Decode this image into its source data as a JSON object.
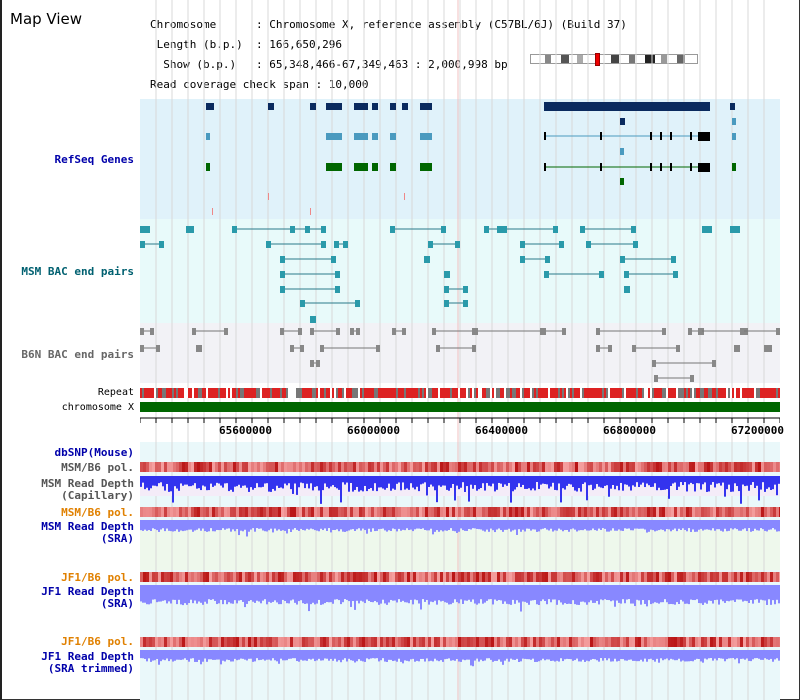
{
  "header": {
    "title": "Map View",
    "info_lines": [
      "Chromosome      : Chromosome X, reference assembly (C57BL/6J) (Build 37)",
      " Length (b.p.)  : 166,650,296",
      "  Show (b.p.)   : 65,348,466-67,349,463 : 2,000,998 bp",
      "Read coverage check span : 10,000"
    ]
  },
  "tracks": {
    "refseq": "RefSeq Genes",
    "msm_bac": "MSM BAC end pairs",
    "b6n_bac": "B6N BAC end pairs",
    "repeat": "Repeat",
    "chromosome": "chromosome X",
    "dbsnp": "dbSNP(Mouse)",
    "msm_b6_pol_1": "MSM/B6 pol.",
    "msm_depth_cap": "MSM Read Depth\n(Capillary)",
    "msm_b6_pol_2": "MSM/B6 pol.",
    "msm_depth_sra": "MSM Read Depth\n(SRA)",
    "jf1_b6_pol_1": "JF1/B6 pol.",
    "jf1_depth_sra": "JF1 Read Depth\n(SRA)",
    "jf1_b6_pol_2": "JF1/B6 pol.",
    "jf1_depth_trim": "JF1 Read Depth\n(SRA trimmed)"
  },
  "axis": {
    "ticks": [
      "65600000",
      "66000000",
      "66400000",
      "66800000",
      "67200000"
    ]
  },
  "colors": {
    "refseq_bg": "#e0f2fa",
    "msm_bg": "#e8fafa",
    "b6n_bg": "#f2f2f6",
    "chrom": "#006600",
    "gene_dark": "#0a2a5e",
    "gene_mid": "#4a9abf",
    "gene_green": "#006600",
    "label_blue": "#0000aa",
    "label_teal": "#006070",
    "label_orange": "#e08000",
    "depth_blue": "#3333ee",
    "depth_lavender": "#8888ff"
  }
}
